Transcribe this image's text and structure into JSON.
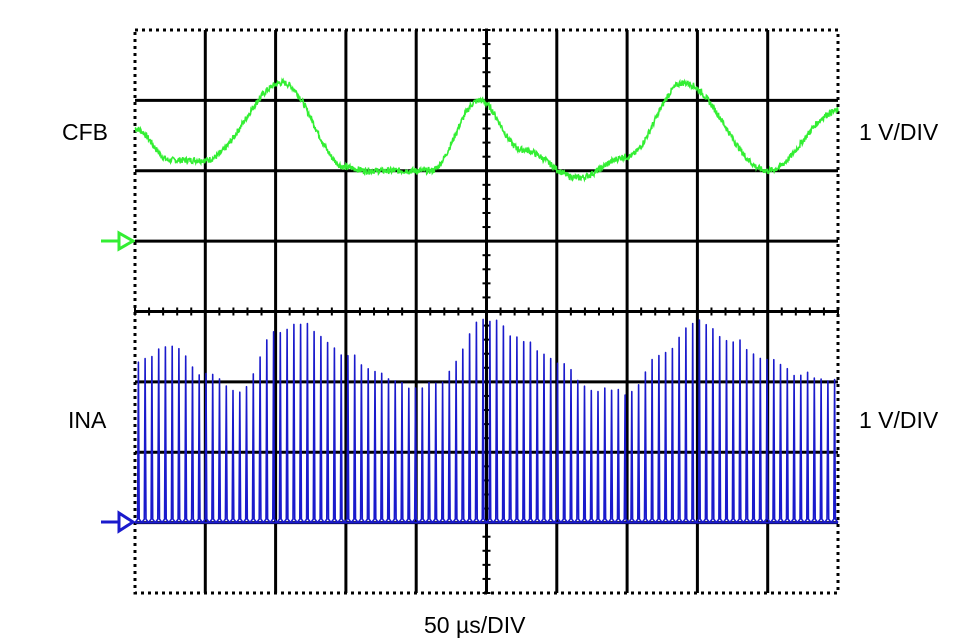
{
  "chart_data": {
    "type": "line",
    "x_label": "50 µs/DIV",
    "x_divisions": 10,
    "x_per_div_us": 50,
    "y_divisions": 8,
    "grid": true,
    "series": [
      {
        "name": "CFB",
        "scale": "1 V/DIV",
        "color": "#33ee33",
        "ground_marker_div": 5.0,
        "description_points": {
          "x_div": [
            0.0,
            0.5,
            1.0,
            2.1,
            3.0,
            3.3,
            4.2,
            4.9,
            5.5,
            6.3,
            7.0,
            7.8,
            9.0,
            10.0
          ],
          "y_div": [
            6.6,
            6.15,
            6.15,
            7.25,
            6.05,
            6.0,
            6.0,
            7.0,
            6.3,
            5.9,
            6.2,
            7.25,
            6.0,
            6.85
          ]
        }
      },
      {
        "name": "INA",
        "scale": "1 V/DIV",
        "color": "#1a1acc",
        "ground_marker_div": 1.0,
        "envelope_points": {
          "x_div": [
            0.0,
            0.5,
            1.0,
            1.5,
            2.0,
            2.3,
            3.0,
            3.5,
            4.0,
            4.3,
            5.0,
            5.5,
            6.0,
            6.5,
            7.0,
            7.5,
            8.0,
            8.5,
            9.0,
            9.5,
            10.0
          ],
          "peak_v": [
            2.3,
            2.5,
            2.1,
            1.85,
            2.7,
            2.85,
            2.4,
            2.1,
            1.9,
            2.0,
            2.9,
            2.6,
            2.3,
            1.9,
            1.85,
            2.4,
            2.85,
            2.6,
            2.3,
            2.1,
            2.0
          ]
        }
      }
    ]
  },
  "labels": {
    "ch1": "CFB",
    "ch2": "INA",
    "ch1_scale": "1 V/DIV",
    "ch2_scale": "1 V/DIV",
    "timebase": "50 µs/DIV"
  },
  "colors": {
    "grid": "#000000",
    "ch1": "#33ee33",
    "ch2": "#1a1acc",
    "background": "#ffffff"
  }
}
